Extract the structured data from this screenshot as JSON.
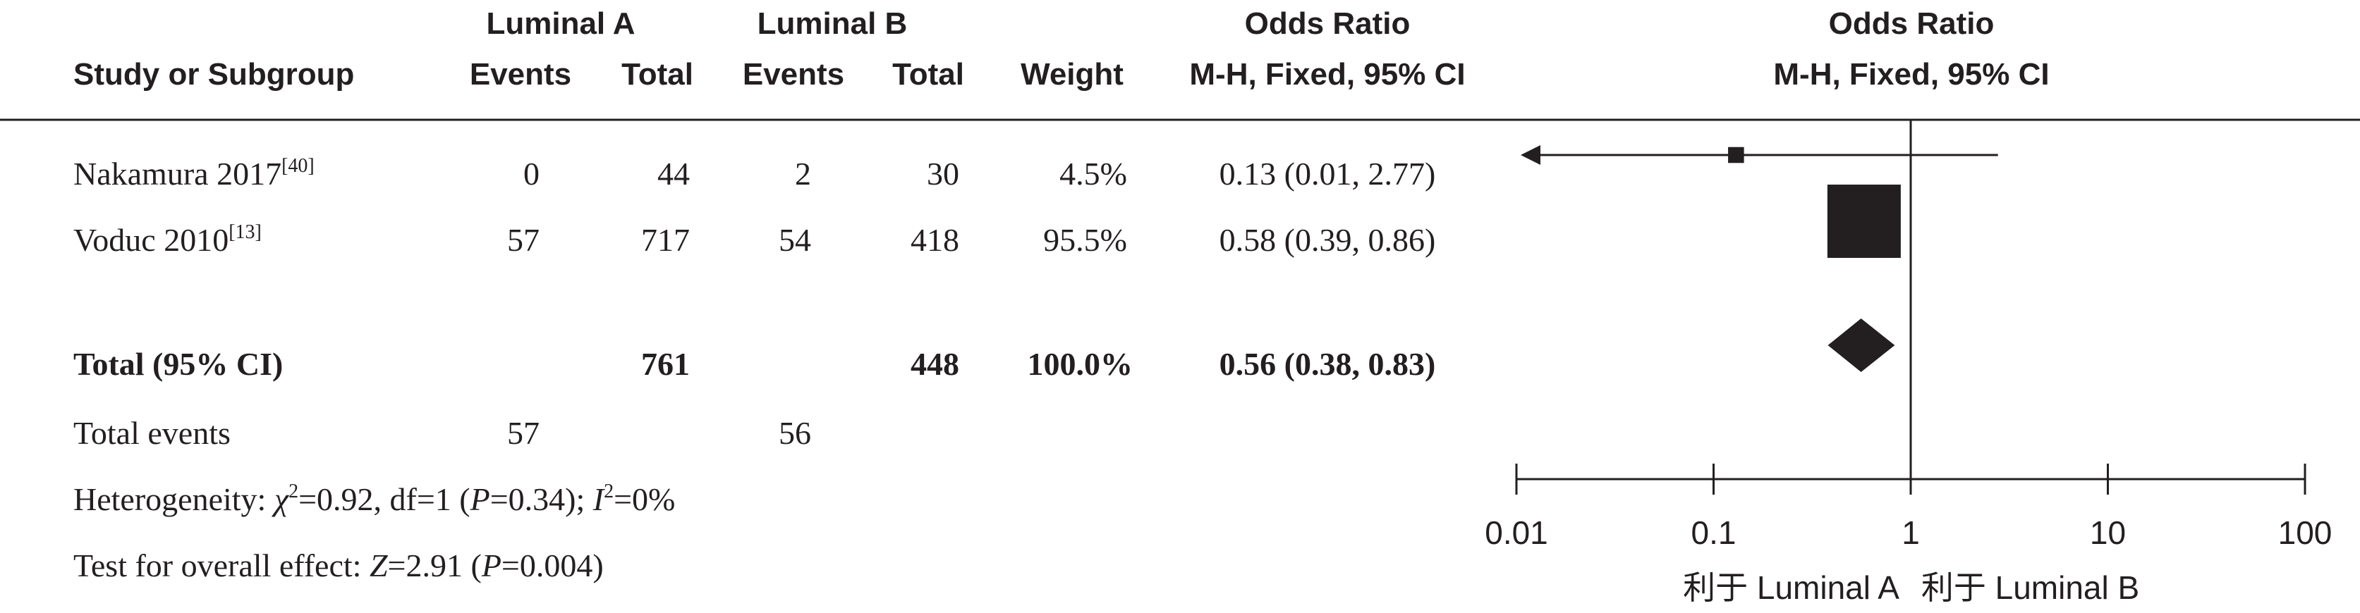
{
  "headers": {
    "group_a": "Luminal A",
    "group_b": "Luminal B",
    "odds_ratio": "Odds Ratio",
    "odds_ratio_plot": "Odds Ratio",
    "study": "Study or Subgroup",
    "events_a": "Events",
    "total_a": "Total",
    "events_b": "Events",
    "total_b": "Total",
    "weight": "Weight",
    "method": "M-H, Fixed, 95% CI",
    "method_plot": "M-H, Fixed, 95% CI"
  },
  "studies": [
    {
      "name": "Nakamura 2017",
      "ref": "[40]",
      "events_a": "0",
      "total_a": "44",
      "events_b": "2",
      "total_b": "30",
      "weight": "4.5%",
      "ci_text": "0.13 (0.01, 2.77)"
    },
    {
      "name": "Voduc 2010",
      "ref": "[13]",
      "events_a": "57",
      "total_a": "717",
      "events_b": "54",
      "total_b": "418",
      "weight": "95.5%",
      "ci_text": "0.58 (0.39, 0.86)"
    }
  ],
  "total": {
    "label": "Total (95% CI)",
    "total_a": "761",
    "total_b": "448",
    "weight": "100.0%",
    "ci_text": "0.56 (0.38, 0.83)"
  },
  "total_events": {
    "label": "Total events",
    "events_a": "57",
    "events_b": "56"
  },
  "heterogeneity": {
    "prefix": "Heterogeneity: ",
    "chi_symbol": "χ",
    "chi_sup": "2",
    "chi_val": "=0.92, df=1 (",
    "p_symbol": "P",
    "p_val": "=0.34); ",
    "i_symbol": "I",
    "i_sup": "2",
    "i_val": "=0%"
  },
  "overall": {
    "prefix": "Test for overall effect: ",
    "z_symbol": "Z",
    "z_val": "=2.91 (",
    "p_symbol": "P",
    "p_val": "=0.004)"
  },
  "chart_data": {
    "type": "forest",
    "xscale": "log",
    "xlim": [
      0.01,
      100
    ],
    "ticks": [
      0.01,
      0.1,
      1,
      10,
      100
    ],
    "tick_labels": [
      "0.01",
      "0.1",
      "1",
      "10",
      "100"
    ],
    "reference_line": 1,
    "favours_left": "利于 Luminal A",
    "favours_right": "利于 Luminal B",
    "points": [
      {
        "label": "Nakamura 2017",
        "or": 0.13,
        "lower": 0.01,
        "upper": 2.77,
        "weight": 4.5,
        "arrow_left": true
      },
      {
        "label": "Voduc 2010",
        "or": 0.58,
        "lower": 0.39,
        "upper": 0.86,
        "weight": 95.5
      }
    ],
    "pooled": {
      "label": "Total (95% CI)",
      "or": 0.56,
      "lower": 0.38,
      "upper": 0.83
    }
  }
}
